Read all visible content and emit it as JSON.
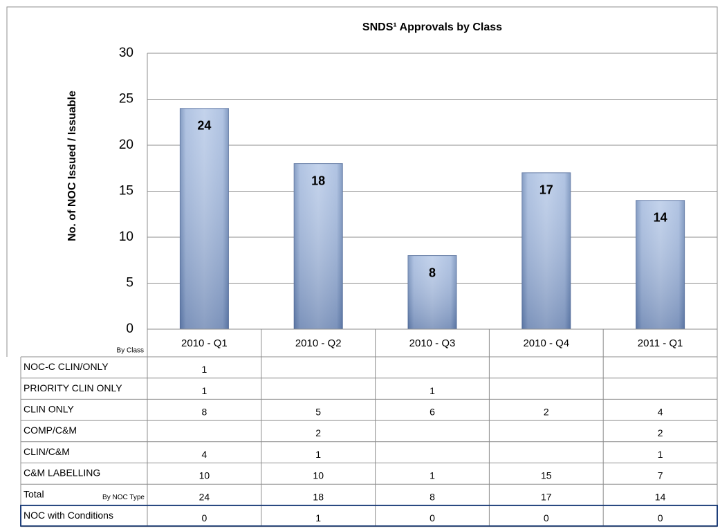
{
  "chart_data": {
    "type": "bar",
    "title": "SNDS¹ Approvals by Class",
    "y_label": "No. of NOC Issued / Issuable",
    "categories": [
      "2010 - Q1",
      "2010 - Q2",
      "2010 - Q3",
      "2010 - Q4",
      "2011 - Q1"
    ],
    "values": [
      24,
      18,
      8,
      17,
      14
    ],
    "color": "#a7bde0",
    "ylim": [
      0,
      30
    ],
    "yticks": [
      0,
      5,
      10,
      15,
      20,
      25,
      30
    ],
    "grid": true
  },
  "data_table": {
    "header_label": "By Class",
    "rows": [
      {
        "label": "NOC-C CLIN/ONLY",
        "values": [
          1,
          null,
          null,
          null,
          null
        ]
      },
      {
        "label": "PRIORITY  CLIN ONLY",
        "values": [
          1,
          null,
          1,
          null,
          null
        ]
      },
      {
        "label": "CLIN ONLY",
        "values": [
          8,
          5,
          6,
          2,
          4
        ]
      },
      {
        "label": "COMP/C&M",
        "values": [
          null,
          2,
          null,
          null,
          2
        ]
      },
      {
        "label": "CLIN/C&M",
        "values": [
          4,
          1,
          null,
          null,
          1
        ]
      },
      {
        "label": "C&M LABELLING",
        "values": [
          10,
          10,
          1,
          15,
          7
        ]
      },
      {
        "label": "Total",
        "sublabel": "By NOC Type",
        "values": [
          24,
          18,
          8,
          17,
          14
        ]
      },
      {
        "label": "NOC with Conditions",
        "values": [
          0,
          1,
          0,
          0,
          0
        ]
      }
    ]
  }
}
